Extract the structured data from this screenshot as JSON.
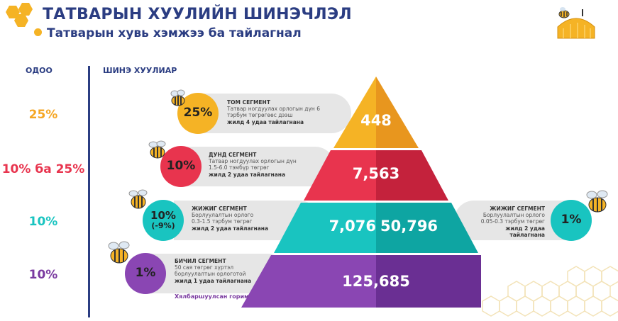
{
  "header": {
    "title": "ТАТВАРЫН ХУУЛИЙН ШИНЭЧЛЭЛ",
    "subtitle": "Татварын хувь хэмжээ ба тайлагнал"
  },
  "columns": {
    "current": "ОДОО",
    "new_law": "ШИНЭ ХУУЛИАР"
  },
  "current_rates": [
    "25%",
    "10% ба 25%",
    "10%",
    "10%"
  ],
  "segments": [
    {
      "name": "ТОМ СЕГМЕНТ",
      "rate": "25%",
      "desc1": "Татвар ногдуулах орлогын дүн 6",
      "desc2": "тэрбум төгрөгөөс дээш",
      "freq": "жилд 4 удаа тайлагнана",
      "count": "448"
    },
    {
      "name": "ДУНД СЕГМЕНТ",
      "rate": "10%",
      "desc1": "Татвар ногдуулах орлогын дүн",
      "desc2": "1.5-6.0 тэмбүр төгрөг",
      "freq": "жилд 2 удаа тайлагнана",
      "count": "7,563"
    },
    {
      "name": "ЖИЖИГ СЕГМЕНТ",
      "rate": "10%",
      "rate_note": "(-9%)",
      "desc1": "Борлуулалтын орлого",
      "desc2": "0.3-1.5 тэрбум төгрөг",
      "freq": "жилд 2 удаа тайлагнана",
      "count": "7,076"
    },
    {
      "name": "БИЧИЛ СЕГМЕНТ",
      "rate": "1%",
      "desc1": "50 сая төгрөг хүртэл",
      "desc2": "борлуулалтын орлоготой",
      "freq": "жилд 1 удаа тайлагнана",
      "count": "125,685",
      "extra": "Хялбаршуулсан горим"
    }
  ],
  "right_segment": {
    "name": "ЖИЖИГ СЕГМЕНТ",
    "rate": "1%",
    "desc1": "Борлуулалтын орлого",
    "desc2": "0.05-0.3 тэрбум төгрөг",
    "freq": "жилд 2 удаа тайлагнана",
    "count": "50,796"
  },
  "colors": {
    "navy": "#2b3d82",
    "orange": "#f5a623",
    "red": "#e8344e",
    "teal": "#19c4c0",
    "purple": "#7a3aa0",
    "pill_grey": "#e6e6e6"
  }
}
